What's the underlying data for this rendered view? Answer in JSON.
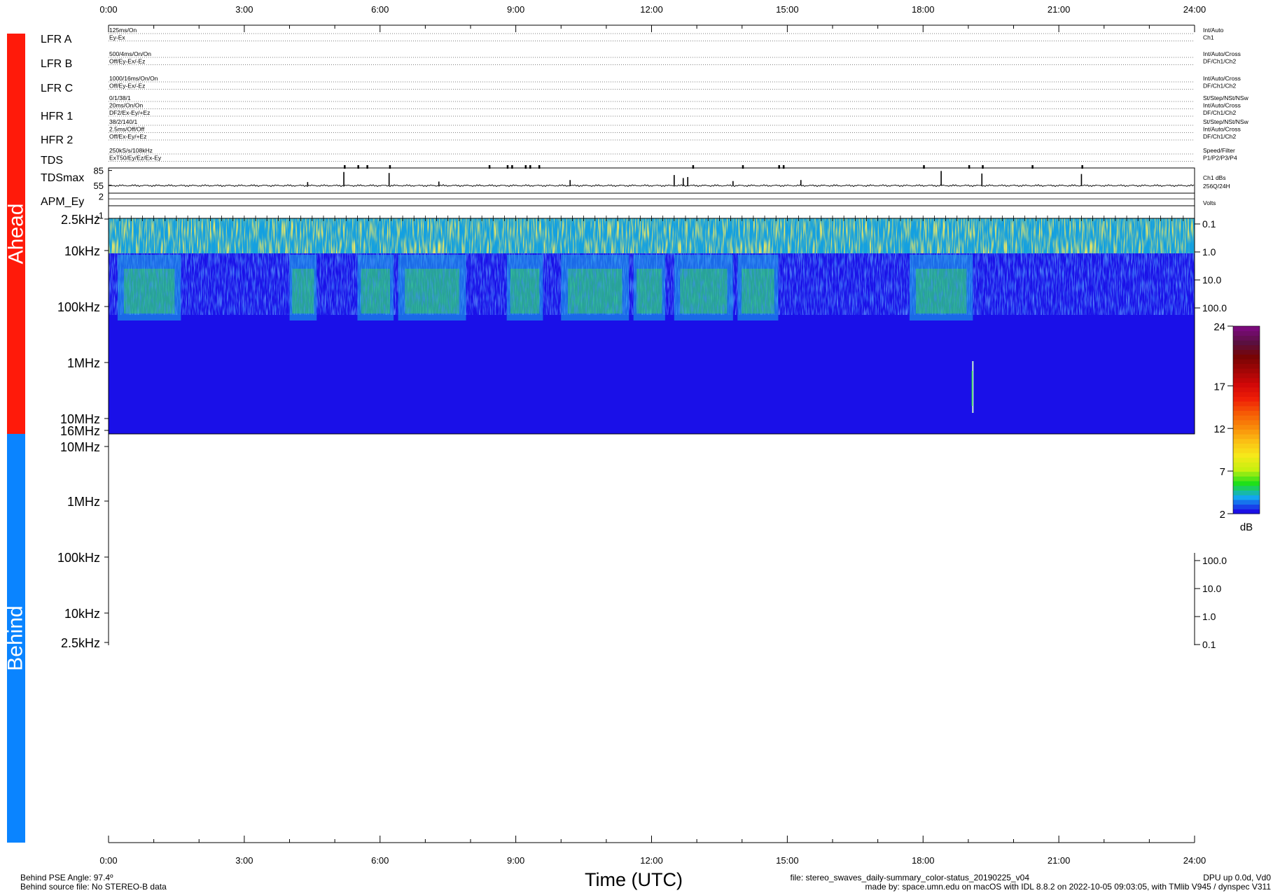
{
  "chart_data": {
    "type": "heatmap",
    "time_axis": {
      "ticks": [
        "0:00",
        "3:00",
        "6:00",
        "9:00",
        "12:00",
        "15:00",
        "18:00",
        "21:00",
        "24:00"
      ],
      "xlim": [
        0,
        24
      ],
      "label": "Time (UTC)"
    },
    "spacecraft": {
      "ahead_label": "Ahead",
      "behind_label": "Behind",
      "ahead_color": "#ff1a0a",
      "behind_color": "#0a84ff"
    },
    "status_rows": [
      {
        "name": "LFR A",
        "left": [
          "125ms/On",
          "Ey-Ex"
        ],
        "right": [
          "Int/Auto",
          "Ch1"
        ]
      },
      {
        "name": "LFR B",
        "left": [
          "500/4ms/On/On",
          "Off/Ey-Ex/-Ez"
        ],
        "right": [
          "Int/Auto/Cross",
          "DF/Ch1/Ch2"
        ]
      },
      {
        "name": "LFR C",
        "left": [
          "1000/16ms/On/On",
          "Off/Ey-Ex/-Ez"
        ],
        "right": [
          "Int/Auto/Cross",
          "DF/Ch1/Ch2"
        ]
      },
      {
        "name": "HFR 1",
        "left": [
          "0/1/38/1",
          "20ms/On/On",
          "DF2/Ex-Ey/+Ez"
        ],
        "right": [
          "St/Step/NSt/NSw",
          "Int/Auto/Cross",
          "DF/Ch1/Ch2"
        ]
      },
      {
        "name": "HFR 2",
        "left": [
          "38/2/140/1",
          "2.5ms/Off/Off",
          "Off/Ex-Ey/+Ez"
        ],
        "right": [
          "St/Step/NSt/NSw",
          "Int/Auto/Cross",
          "DF/Ch1/Ch2"
        ]
      },
      {
        "name": "TDS",
        "left": [
          "250kS/s/108kHz",
          "ExT50/Ey/Ez/Ex-Ey"
        ],
        "right": [
          "Speed/Filter",
          "P1/P2/P3/P4"
        ]
      }
    ],
    "tdsmax": {
      "name": "TDSmax",
      "yticks": [
        85,
        55
      ],
      "right": [
        "Ch1 dBs",
        "256Q/24H"
      ],
      "baseline": 55,
      "spikes": [
        [
          4.4,
          62
        ],
        [
          5.2,
          82
        ],
        [
          6.2,
          80
        ],
        [
          7.3,
          63
        ],
        [
          10.2,
          66
        ],
        [
          12.5,
          76
        ],
        [
          12.7,
          70
        ],
        [
          12.8,
          72
        ],
        [
          13.8,
          64
        ],
        [
          15.3,
          66
        ],
        [
          18.4,
          84
        ],
        [
          19.3,
          79
        ],
        [
          21.5,
          78
        ]
      ]
    },
    "apm_ey": {
      "name": "APM_Ey",
      "yticks": [
        2,
        -1
      ],
      "right": "Volts",
      "value": 0.5
    },
    "ahead_spectrogram": {
      "freq_labels": [
        "2.5kHz",
        "10kHz",
        "100kHz",
        "1MHz",
        "10MHz",
        "16MHz"
      ],
      "right_labels": [
        "0.1",
        "1.0",
        "10.0",
        "100.0"
      ],
      "lf_active_periods": [
        [
          0.2,
          1.6
        ],
        [
          4.0,
          4.6
        ],
        [
          5.5,
          6.3
        ],
        [
          6.4,
          7.9
        ],
        [
          8.8,
          9.6
        ],
        [
          10.0,
          11.5
        ],
        [
          11.6,
          12.3
        ],
        [
          12.5,
          13.8
        ],
        [
          13.9,
          14.8
        ],
        [
          17.7,
          19.1
        ]
      ],
      "hf_burst_hour": 19.1
    },
    "behind_spectrogram": {
      "freq_labels": [
        "10MHz",
        "1MHz",
        "100kHz",
        "10kHz",
        "2.5kHz"
      ],
      "right_labels": [
        "100.0",
        "10.0",
        "1.0",
        "0.1"
      ],
      "note": "No STEREO-B data"
    },
    "colorbar": {
      "ticks": [
        24,
        17,
        12,
        7,
        2
      ],
      "unit": "dB",
      "range": [
        2,
        24
      ],
      "colors": [
        "#1b10e6",
        "#13a6f0",
        "#1fe01a",
        "#c8f00f",
        "#f6e81a",
        "#fbbf14",
        "#f98a0a",
        "#f65a05",
        "#ef1f07",
        "#d20808",
        "#a30606",
        "#780404",
        "#5a1040",
        "#7a0a7a"
      ]
    }
  },
  "footer": {
    "left_line1": "Behind PSE Angle:  97.4º",
    "left_line2": "Behind source file: No STEREO-B data",
    "center": "Time (UTC)",
    "file_line1": "file: stereo_swaves_daily-summary_color-status_20190225_v04",
    "file_line2": "made by: space.umn.edu on macOS with IDL 8.8.2 on 2022-10-05 09:03:05, with TMlib V945 / dynspec V311",
    "right_line1": "DPU up 0.0d, Vd0"
  }
}
